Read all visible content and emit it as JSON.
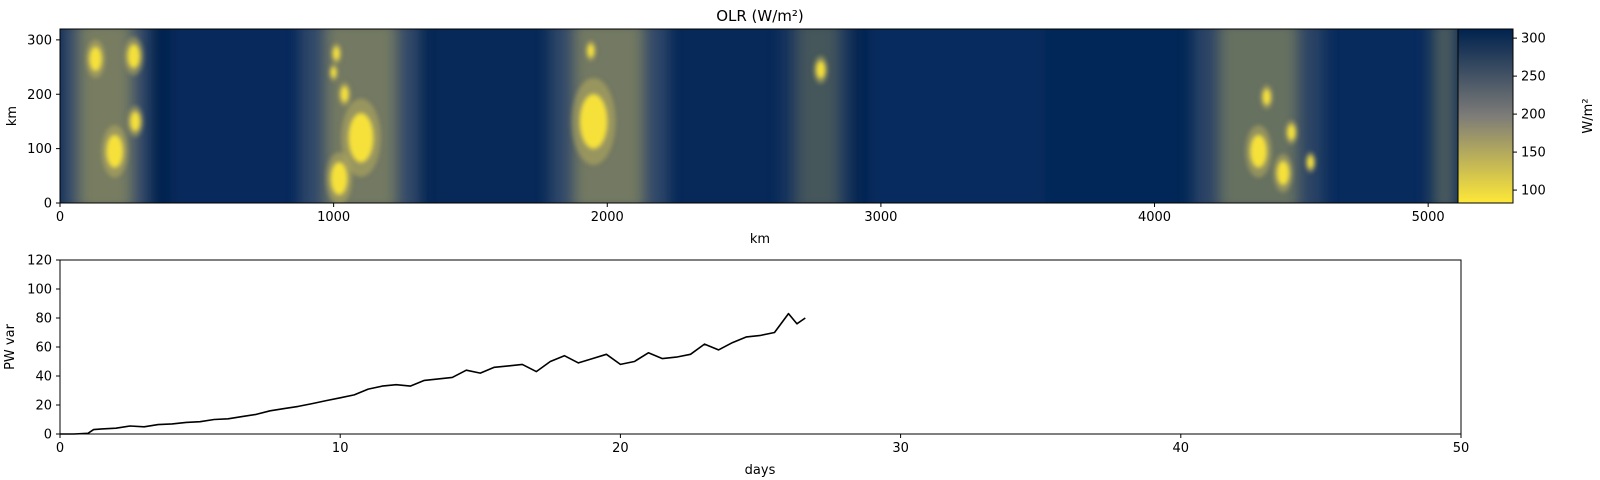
{
  "chart_data": [
    {
      "type": "heatmap",
      "title": "OLR (W/m²)",
      "xlabel": "km",
      "ylabel": "km",
      "xlim": [
        0,
        5120
      ],
      "ylim": [
        0,
        320
      ],
      "xticks": [
        0,
        1000,
        2000,
        3000,
        4000,
        5000
      ],
      "yticks": [
        0,
        100,
        200,
        300
      ],
      "colorbar": {
        "label": "W/m²",
        "range": [
          83,
          312
        ],
        "ticks": [
          100,
          150,
          200,
          250,
          300
        ],
        "colors": [
          "#fee838",
          "#7d7c78",
          "#00224e"
        ]
      },
      "convective_bands_km": [
        {
          "x_min": 0,
          "x_max": 330,
          "intensity": 0.85
        },
        {
          "x_min": 880,
          "x_max": 1320,
          "intensity": 0.8
        },
        {
          "x_min": 1790,
          "x_max": 2220,
          "intensity": 0.8
        },
        {
          "x_min": 2640,
          "x_max": 2900,
          "intensity": 0.45
        },
        {
          "x_min": 4140,
          "x_max": 4620,
          "intensity": 0.7
        },
        {
          "x_min": 5000,
          "x_max": 5120,
          "intensity": 0.5
        }
      ],
      "cells": [
        {
          "x": 130,
          "y": 265,
          "r": 22
        },
        {
          "x": 270,
          "y": 270,
          "r": 22
        },
        {
          "x": 200,
          "y": 95,
          "r": 30
        },
        {
          "x": 275,
          "y": 150,
          "r": 18
        },
        {
          "x": 1010,
          "y": 275,
          "r": 12
        },
        {
          "x": 1000,
          "y": 240,
          "r": 10
        },
        {
          "x": 1040,
          "y": 200,
          "r": 14
        },
        {
          "x": 1100,
          "y": 120,
          "r": 45
        },
        {
          "x": 1020,
          "y": 45,
          "r": 30
        },
        {
          "x": 1940,
          "y": 280,
          "r": 12
        },
        {
          "x": 1950,
          "y": 150,
          "r": 50
        },
        {
          "x": 2780,
          "y": 245,
          "r": 16
        },
        {
          "x": 4410,
          "y": 195,
          "r": 14
        },
        {
          "x": 4380,
          "y": 95,
          "r": 30
        },
        {
          "x": 4470,
          "y": 55,
          "r": 22
        },
        {
          "x": 4500,
          "y": 130,
          "r": 14
        },
        {
          "x": 4570,
          "y": 75,
          "r": 12
        }
      ]
    },
    {
      "type": "line",
      "xlabel": "days",
      "ylabel": "PW var",
      "xlim": [
        0,
        50
      ],
      "ylim": [
        0,
        120
      ],
      "xticks": [
        0,
        10,
        20,
        30,
        40,
        50
      ],
      "yticks": [
        0,
        20,
        40,
        60,
        80,
        100,
        120
      ],
      "line_color": "#000000",
      "series": [
        {
          "x": [
            0,
            0.5,
            1.0,
            1.2,
            1.5,
            2.0,
            2.5,
            3.0,
            3.5,
            4.0,
            4.5,
            5.0,
            5.5,
            6.0,
            6.5,
            7.0,
            7.5,
            8.0,
            8.5,
            9.0,
            9.5,
            10.0,
            10.5,
            11.0,
            11.5,
            12.0,
            12.5,
            13.0,
            13.5,
            14.0,
            14.5,
            15.0,
            15.5,
            16.0,
            16.5,
            17.0,
            17.5,
            18.0,
            18.5,
            19.0,
            19.5,
            20.0,
            20.5,
            21.0,
            21.5,
            22.0,
            22.5,
            23.0,
            23.5,
            24.0,
            24.5,
            25.0,
            25.5,
            26.0,
            26.3,
            26.6
          ],
          "y": [
            0,
            0,
            0.5,
            3,
            3.5,
            4,
            5.5,
            5,
            6.5,
            7,
            8,
            8.5,
            10,
            10.5,
            12,
            13.5,
            16,
            17.5,
            19,
            21,
            23,
            25,
            27,
            31,
            33,
            34,
            33,
            37,
            38,
            39,
            44,
            42,
            46,
            47,
            48,
            43,
            50,
            54,
            49,
            52,
            55,
            48,
            50,
            56,
            52,
            53,
            55,
            62,
            58,
            63,
            67,
            68,
            70,
            83,
            76,
            80
          ]
        }
      ]
    }
  ]
}
